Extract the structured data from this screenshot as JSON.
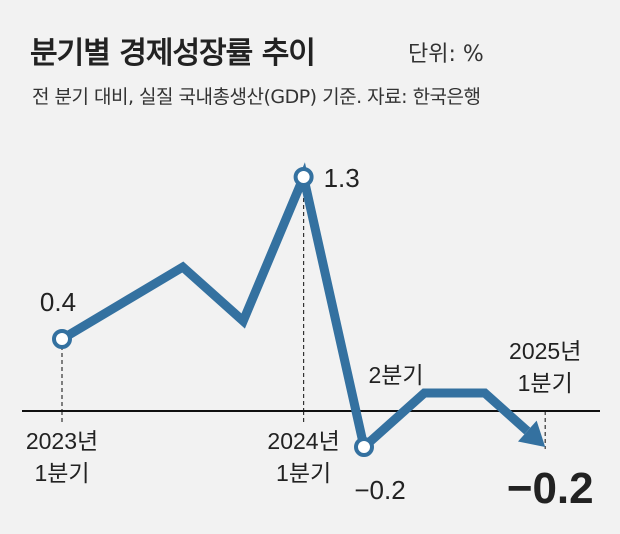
{
  "header": {
    "title": "분기별 경제성장률 추이",
    "unit": "단위: %",
    "subtitle": "전 분기 대비, 실질 국내총생산(GDP) 기준. 자료: 한국은행"
  },
  "colors": {
    "line": "#3471a0",
    "background": "#f2f2f2",
    "axis": "#111111"
  },
  "chart_data": {
    "type": "line",
    "title": "분기별 경제성장률 추이",
    "x": [
      "2023Q1",
      "2023Q2",
      "2023Q3",
      "2023Q4",
      "2024Q1",
      "2024Q2",
      "2024Q3",
      "2024Q4",
      "2025Q1"
    ],
    "values": [
      0.4,
      0.6,
      0.8,
      0.5,
      1.3,
      -0.2,
      0.1,
      0.1,
      -0.2
    ],
    "unit": "%",
    "grid": false,
    "ticks": [
      {
        "index": 0,
        "line1": "2023년",
        "line2": "1분기"
      },
      {
        "index": 4,
        "line1": "2024년",
        "line2": "1분기"
      },
      {
        "index": 5,
        "line1": "2분기",
        "line2": ""
      },
      {
        "index": 8,
        "line1": "2025년",
        "line2": "1분기"
      }
    ],
    "data_labels": [
      {
        "index": 0,
        "text": "0.4"
      },
      {
        "index": 4,
        "text": "1.3"
      },
      {
        "index": 5,
        "text": "−0.2"
      },
      {
        "index": 8,
        "text": "−0.2"
      }
    ]
  }
}
